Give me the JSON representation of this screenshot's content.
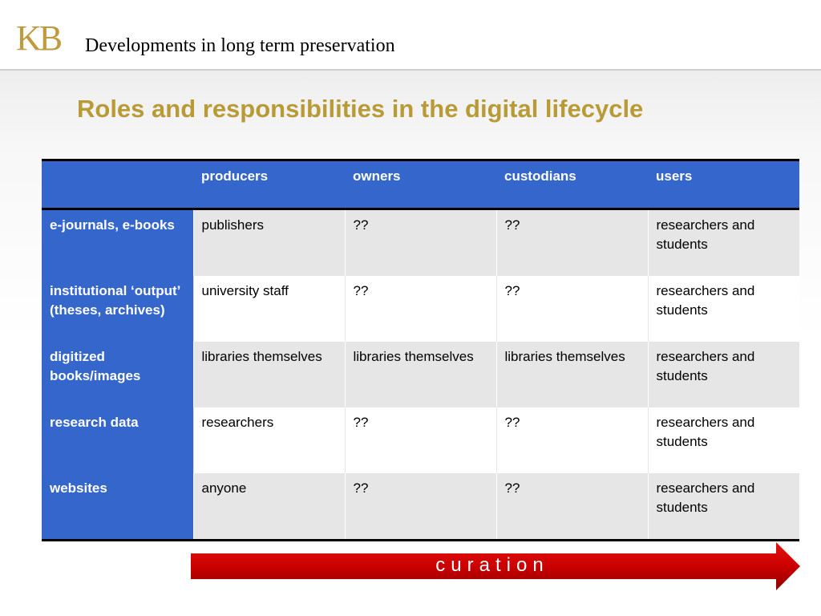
{
  "header": {
    "logo_text": "KB",
    "title": "Developments in long term preservation"
  },
  "slide": {
    "title": "Roles and responsibilities in the digital lifecycle"
  },
  "table": {
    "columns": [
      "",
      "producers",
      "owners",
      "custodians",
      "users"
    ],
    "rows": [
      {
        "label": "e-journals, e-books",
        "cells": [
          "publishers",
          "??",
          "??",
          "researchers and students"
        ]
      },
      {
        "label": "institutional ‘output’ (theses, archives)",
        "cells": [
          "university staff",
          "??",
          "??",
          "researchers and students"
        ]
      },
      {
        "label": "digitized books/images",
        "cells": [
          "libraries themselves",
          "libraries themselves",
          "libraries themselves",
          "researchers and students"
        ]
      },
      {
        "label": "research data",
        "cells": [
          "researchers",
          "??",
          "??",
          "researchers and students"
        ]
      },
      {
        "label": "websites",
        "cells": [
          "anyone",
          "??",
          "??",
          "researchers and students"
        ]
      }
    ]
  },
  "arrow": {
    "label": "curation"
  },
  "colors": {
    "header_blue": "#3566cc",
    "title_gold": "#b89a36",
    "arrow_red": "#cc0000"
  }
}
